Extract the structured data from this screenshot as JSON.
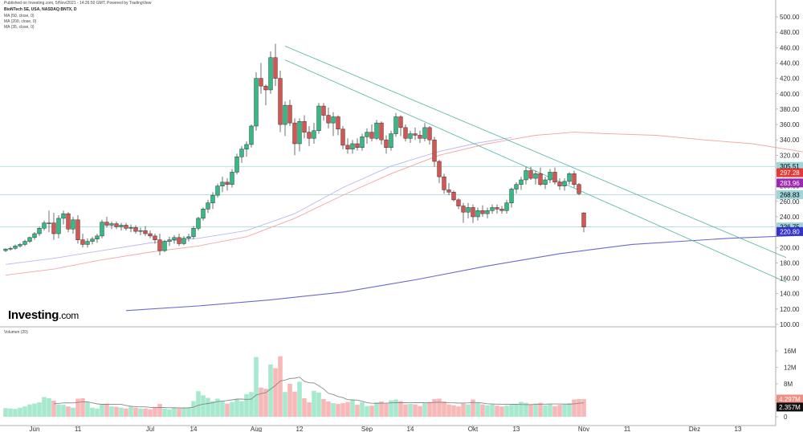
{
  "header": {
    "published": "Published on Investing.com, 5/Nov/2021 - 14:26:50 GMT, Powered by TradingView",
    "symbol": "BioNTech SE, USA, NASDAQ:BNTX, D",
    "ma_labels": [
      "MA (50, close, 0)",
      "MA (200, close, 0)",
      "MA (35, close, 0)"
    ]
  },
  "brand": {
    "name": "Investing",
    "suffix": ".com"
  },
  "colors": {
    "up": "#26a69a",
    "up_fill": "#2ebd85",
    "down": "#d9534f",
    "vol_up": "#a6e9cf",
    "vol_down": "#f7b8b8",
    "ma_short": "#f2a6a6",
    "ma_mid": "#b8b8f2",
    "ma_long": "#6a6acd",
    "trend": "#4fb3a3",
    "hline": "#9fd4d8",
    "vol_ma": "#888888"
  },
  "chart_data": {
    "type": "candlestick",
    "price_axis": {
      "min": 100,
      "max": 500,
      "ticks": [
        500,
        480,
        460,
        440,
        420,
        400,
        380,
        360,
        340,
        320,
        300,
        280,
        260,
        240,
        220,
        200,
        180,
        160,
        140,
        120,
        100
      ]
    },
    "volume_axis": {
      "label": "Volumen (20)",
      "ticks": [
        "16M",
        "12M",
        "8M",
        "4M",
        "0"
      ],
      "tick_values": [
        16,
        12,
        8,
        4,
        0
      ]
    },
    "x_labels": [
      {
        "label": "Jun",
        "index": 6
      },
      {
        "label": "11",
        "index": 15
      },
      {
        "label": "Jul",
        "index": 30
      },
      {
        "label": "14",
        "index": 39
      },
      {
        "label": "Aug",
        "index": 52
      },
      {
        "label": "12",
        "index": 61
      },
      {
        "label": "Sep",
        "index": 75
      },
      {
        "label": "14",
        "index": 84
      },
      {
        "label": "Okt",
        "index": 97
      },
      {
        "label": "13",
        "index": 106
      },
      {
        "label": "Nov",
        "index": 120
      },
      {
        "label": "11",
        "index": 129
      },
      {
        "label": "Dez",
        "index": 143
      },
      {
        "label": "13",
        "index": 152
      }
    ],
    "price_badges": [
      {
        "label": "305.51",
        "value": 305.51,
        "color": "#9fd4d8",
        "text_color": "#000000"
      },
      {
        "label": "297.28",
        "value": 297.28,
        "color": "#e53935",
        "text_color": "#ffffff"
      },
      {
        "label": "283.96",
        "value": 283.96,
        "color": "#9c27b0",
        "text_color": "#ffffff"
      },
      {
        "label": "268.83",
        "value": 268.83,
        "color": "#9fd4d8",
        "text_color": "#000000"
      },
      {
        "label": "226.75",
        "value": 226.75,
        "color": "#9fd4d8",
        "text_color": "#000000"
      },
      {
        "label": "220.80",
        "value": 220.8,
        "color": "#3333cc",
        "text_color": "#ffffff"
      }
    ],
    "volume_badges": [
      {
        "label": "4.297M",
        "value": 4.297,
        "color": "#f28b82",
        "text_color": "#ffffff"
      },
      {
        "label": "2.357M",
        "value": 2.357,
        "color": "#111111",
        "text_color": "#ffffff"
      }
    ],
    "horizontal_lines": [
      305.51,
      268.83,
      226.75
    ],
    "trendlines": [
      {
        "from": [
          58,
          462
        ],
        "to": [
          162,
          187
        ]
      },
      {
        "from": [
          58,
          444
        ],
        "to": [
          162,
          155
        ]
      }
    ],
    "candles": [
      [
        196,
        199,
        194,
        198,
        2.1
      ],
      [
        198,
        201,
        196,
        199,
        2.0
      ],
      [
        199,
        204,
        197,
        202,
        1.9
      ],
      [
        202,
        206,
        200,
        204,
        2.2
      ],
      [
        204,
        210,
        202,
        208,
        2.5
      ],
      [
        208,
        214,
        206,
        213,
        3.0
      ],
      [
        213,
        220,
        210,
        218,
        3.2
      ],
      [
        218,
        227,
        215,
        225,
        3.5
      ],
      [
        225,
        235,
        222,
        232,
        4.8
      ],
      [
        232,
        248,
        220,
        232,
        4.5
      ],
      [
        232,
        245,
        210,
        218,
        3.9
      ],
      [
        218,
        242,
        212,
        238,
        3.0
      ],
      [
        238,
        248,
        230,
        244,
        2.9
      ],
      [
        244,
        246,
        220,
        224,
        2.5
      ],
      [
        224,
        240,
        218,
        236,
        2.2
      ],
      [
        236,
        242,
        205,
        210,
        4.4
      ],
      [
        210,
        218,
        200,
        204,
        4.5
      ],
      [
        204,
        212,
        200,
        208,
        3.6
      ],
      [
        208,
        214,
        204,
        211,
        2.2
      ],
      [
        211,
        218,
        206,
        215,
        2.0
      ],
      [
        215,
        236,
        212,
        233,
        3.0
      ],
      [
        233,
        240,
        226,
        229,
        3.2
      ],
      [
        229,
        234,
        224,
        231,
        2.5
      ],
      [
        231,
        234,
        224,
        227,
        2.4
      ],
      [
        227,
        232,
        222,
        229,
        2.2
      ],
      [
        229,
        232,
        222,
        225,
        2.0
      ],
      [
        225,
        230,
        220,
        226,
        2.5
      ],
      [
        226,
        229,
        218,
        221,
        2.2
      ],
      [
        221,
        226,
        216,
        222,
        2.0
      ],
      [
        222,
        228,
        215,
        218,
        2.0
      ],
      [
        218,
        222,
        212,
        215,
        1.8
      ],
      [
        215,
        218,
        205,
        210,
        2.4
      ],
      [
        210,
        218,
        190,
        196,
        3.1
      ],
      [
        196,
        210,
        194,
        208,
        2.0
      ],
      [
        208,
        214,
        202,
        210,
        1.8
      ],
      [
        210,
        216,
        205,
        213,
        2.2
      ],
      [
        213,
        218,
        202,
        205,
        2.0
      ],
      [
        205,
        215,
        203,
        212,
        2.1
      ],
      [
        212,
        218,
        208,
        214,
        2.3
      ],
      [
        214,
        228,
        211,
        225,
        3.8
      ],
      [
        225,
        240,
        222,
        238,
        6.2
      ],
      [
        238,
        252,
        235,
        250,
        5.2
      ],
      [
        250,
        262,
        245,
        258,
        4.6
      ],
      [
        258,
        272,
        250,
        268,
        3.8
      ],
      [
        268,
        283,
        265,
        280,
        4.4
      ],
      [
        280,
        292,
        272,
        285,
        3.9
      ],
      [
        285,
        290,
        274,
        282,
        3.2
      ],
      [
        282,
        302,
        278,
        298,
        3.6
      ],
      [
        298,
        322,
        295,
        318,
        4.2
      ],
      [
        318,
        332,
        310,
        328,
        3.8
      ],
      [
        328,
        338,
        318,
        334,
        5.5
      ],
      [
        334,
        360,
        330,
        358,
        6.0
      ],
      [
        358,
        428,
        352,
        420,
        14.5
      ],
      [
        420,
        440,
        400,
        410,
        7.1
      ],
      [
        410,
        412,
        385,
        405,
        6.8
      ],
      [
        405,
        455,
        400,
        447,
        12.7
      ],
      [
        447,
        465,
        410,
        420,
        11.8
      ],
      [
        420,
        430,
        350,
        360,
        14.7
      ],
      [
        360,
        390,
        345,
        385,
        6.0
      ],
      [
        385,
        392,
        358,
        362,
        8.0
      ],
      [
        362,
        368,
        320,
        335,
        6.1
      ],
      [
        335,
        368,
        325,
        364,
        8.5
      ],
      [
        364,
        372,
        342,
        350,
        4.5
      ],
      [
        350,
        358,
        332,
        342,
        3.5
      ],
      [
        342,
        362,
        335,
        352,
        6.3
      ],
      [
        352,
        388,
        348,
        384,
        5.9
      ],
      [
        384,
        388,
        365,
        372,
        4.3
      ],
      [
        372,
        382,
        355,
        362,
        3.7
      ],
      [
        362,
        376,
        345,
        370,
        3.3
      ],
      [
        370,
        372,
        346,
        354,
        3.1
      ],
      [
        354,
        358,
        328,
        333,
        3.3
      ],
      [
        333,
        342,
        322,
        328,
        3.6
      ],
      [
        328,
        340,
        322,
        335,
        4.0
      ],
      [
        335,
        342,
        326,
        330,
        2.9
      ],
      [
        330,
        348,
        326,
        344,
        3.5
      ],
      [
        344,
        355,
        335,
        350,
        2.6
      ],
      [
        350,
        360,
        338,
        342,
        2.7
      ],
      [
        342,
        366,
        340,
        362,
        3.5
      ],
      [
        362,
        364,
        334,
        340,
        3.7
      ],
      [
        340,
        346,
        322,
        330,
        3.2
      ],
      [
        330,
        352,
        326,
        348,
        4.0
      ],
      [
        348,
        375,
        344,
        370,
        4.2
      ],
      [
        370,
        372,
        345,
        356,
        3.8
      ],
      [
        356,
        360,
        338,
        342,
        3.0
      ],
      [
        342,
        352,
        336,
        348,
        3.1
      ],
      [
        348,
        356,
        340,
        346,
        3.0
      ],
      [
        346,
        352,
        336,
        342,
        2.6
      ],
      [
        342,
        362,
        338,
        356,
        3.3
      ],
      [
        356,
        358,
        334,
        340,
        3.6
      ],
      [
        340,
        344,
        305,
        312,
        4.3
      ],
      [
        312,
        314,
        284,
        292,
        4.4
      ],
      [
        292,
        296,
        270,
        275,
        3.7
      ],
      [
        275,
        284,
        268,
        272,
        3.0
      ],
      [
        272,
        274,
        260,
        262,
        2.8
      ],
      [
        262,
        264,
        250,
        254,
        2.5
      ],
      [
        254,
        258,
        232,
        246,
        3.2
      ],
      [
        246,
        258,
        238,
        252,
        3.0
      ],
      [
        252,
        256,
        232,
        240,
        4.2
      ],
      [
        240,
        252,
        235,
        248,
        3.5
      ],
      [
        248,
        255,
        240,
        244,
        3.0
      ],
      [
        244,
        252,
        238,
        248,
        2.8
      ],
      [
        248,
        256,
        244,
        252,
        3.0
      ],
      [
        252,
        256,
        244,
        250,
        2.7
      ],
      [
        250,
        254,
        244,
        248,
        2.5
      ],
      [
        248,
        262,
        244,
        258,
        2.7
      ],
      [
        258,
        278,
        252,
        276,
        2.9
      ],
      [
        276,
        285,
        270,
        282,
        3.1
      ],
      [
        282,
        292,
        275,
        288,
        3.6
      ],
      [
        288,
        305,
        282,
        300,
        3.4
      ],
      [
        300,
        305,
        288,
        290,
        3.0
      ],
      [
        290,
        300,
        282,
        296,
        3.2
      ],
      [
        296,
        304,
        280,
        282,
        3.4
      ],
      [
        282,
        292,
        276,
        288,
        2.8
      ],
      [
        288,
        302,
        284,
        298,
        3.0
      ],
      [
        298,
        304,
        282,
        285,
        2.6
      ],
      [
        285,
        290,
        275,
        280,
        2.9
      ],
      [
        280,
        290,
        274,
        286,
        3.0
      ],
      [
        286,
        298,
        282,
        296,
        3.3
      ],
      [
        296,
        300,
        278,
        282,
        4.2
      ],
      [
        282,
        284,
        268,
        270,
        4.3
      ],
      [
        245,
        246,
        220,
        226.75,
        4.297
      ]
    ],
    "ma_short": [
      [
        0,
        164
      ],
      [
        10,
        172
      ],
      [
        20,
        184
      ],
      [
        30,
        194
      ],
      [
        40,
        202
      ],
      [
        50,
        214
      ],
      [
        60,
        238
      ],
      [
        70,
        268
      ],
      [
        80,
        296
      ],
      [
        90,
        320
      ],
      [
        100,
        335
      ],
      [
        110,
        346
      ],
      [
        118,
        350
      ],
      [
        125,
        348
      ],
      [
        135,
        346
      ],
      [
        145,
        340
      ],
      [
        155,
        335
      ],
      [
        165,
        325
      ],
      [
        175,
        313
      ],
      [
        185,
        305
      ],
      [
        195,
        298
      ],
      [
        205,
        296
      ],
      [
        210,
        294
      ]
    ],
    "ma_mid": [
      [
        0,
        178
      ],
      [
        10,
        186
      ],
      [
        20,
        196
      ],
      [
        30,
        206
      ],
      [
        40,
        212
      ],
      [
        50,
        222
      ],
      [
        60,
        244
      ],
      [
        70,
        278
      ],
      [
        80,
        306
      ],
      [
        90,
        325
      ],
      [
        98,
        336
      ],
      [
        105,
        343
      ]
    ],
    "ma_long": [
      [
        25,
        118
      ],
      [
        40,
        124
      ],
      [
        55,
        132
      ],
      [
        70,
        142
      ],
      [
        85,
        158
      ],
      [
        100,
        176
      ],
      [
        115,
        192
      ],
      [
        130,
        204
      ],
      [
        150,
        212
      ],
      [
        170,
        217
      ],
      [
        192,
        220.8
      ]
    ]
  }
}
